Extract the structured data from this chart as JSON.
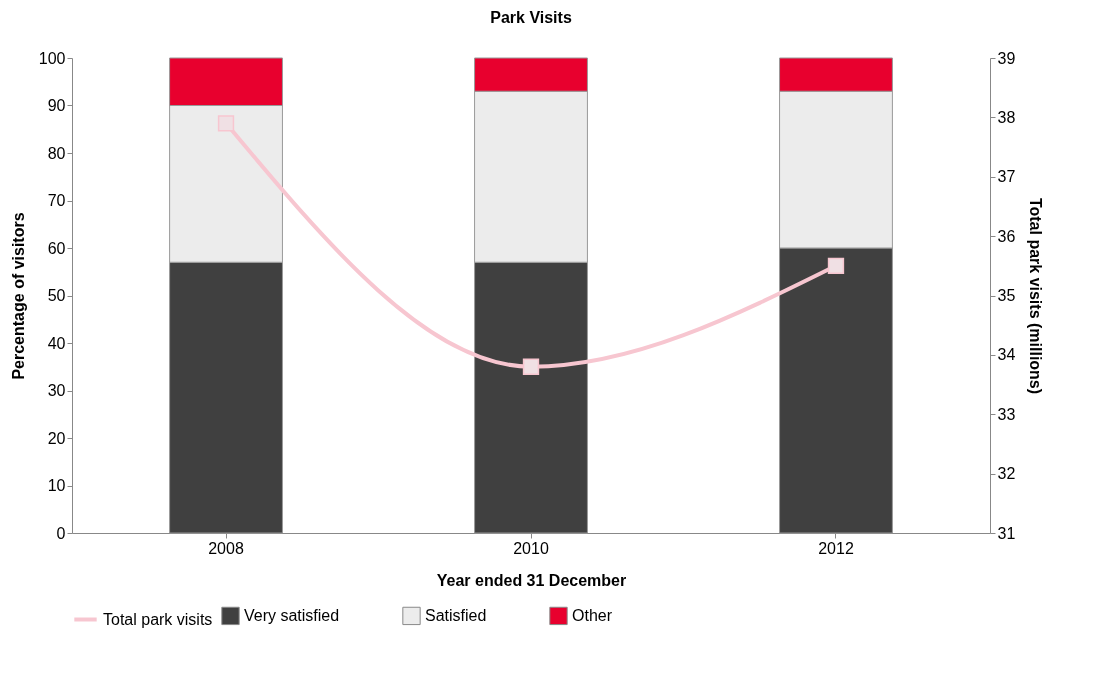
{
  "chart_data": {
    "type": "bar",
    "title": "Park Visits",
    "xlabel": "Year ended 31 December",
    "ylabel": "Percentage of visitors",
    "y2label": "Total park visits (millions)",
    "categories": [
      "2008",
      "2010",
      "2012"
    ],
    "stacked": true,
    "legend": "bottom",
    "grid": false,
    "series": [
      {
        "name": "Very satisfied",
        "color": "#404040",
        "values": [
          57,
          57,
          60
        ]
      },
      {
        "name": "Satisfied",
        "color": "#ececec",
        "values": [
          33,
          36,
          33
        ]
      },
      {
        "name": "Other",
        "color": "#e8002e",
        "values": [
          10,
          7,
          7
        ]
      },
      {
        "name": "Total park visits",
        "type": "line",
        "axis": "y2",
        "color": "#f7c6d0",
        "marker": "square",
        "values": [
          37.9,
          33.8,
          35.5
        ]
      }
    ],
    "ylim": [
      0,
      100
    ],
    "yticks": [
      0,
      10,
      20,
      30,
      40,
      50,
      60,
      70,
      80,
      90,
      100
    ],
    "y2lim": [
      31,
      39
    ],
    "y2ticks": [
      31,
      32,
      33,
      34,
      35,
      36,
      37,
      38,
      39
    ]
  }
}
